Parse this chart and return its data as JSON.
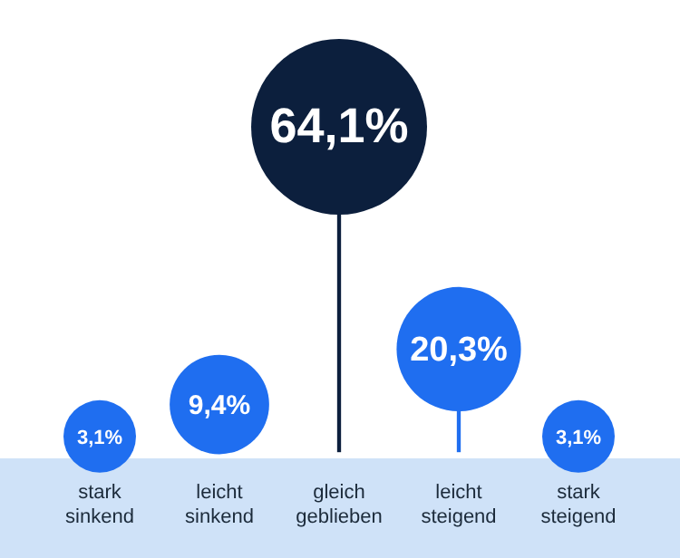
{
  "chart_data": {
    "type": "lollipop",
    "categories": [
      "stark sinkend",
      "leicht sinkend",
      "gleich geblieben",
      "leicht steigend",
      "stark steigend"
    ],
    "values": [
      3.1,
      9.4,
      64.1,
      20.3,
      3.1
    ],
    "value_labels": [
      "3,1%",
      "9,4%",
      "64,1%",
      "20,3%",
      "3,1%"
    ],
    "colors": [
      "#1f6ef0",
      "#1f6ef0",
      "#0c1f3d",
      "#1f6ef0",
      "#1f6ef0"
    ],
    "sizes": [
      0.17,
      0.32,
      1,
      0.5,
      0.17
    ],
    "tick_labels": "x",
    "grid": false,
    "legend": false
  }
}
